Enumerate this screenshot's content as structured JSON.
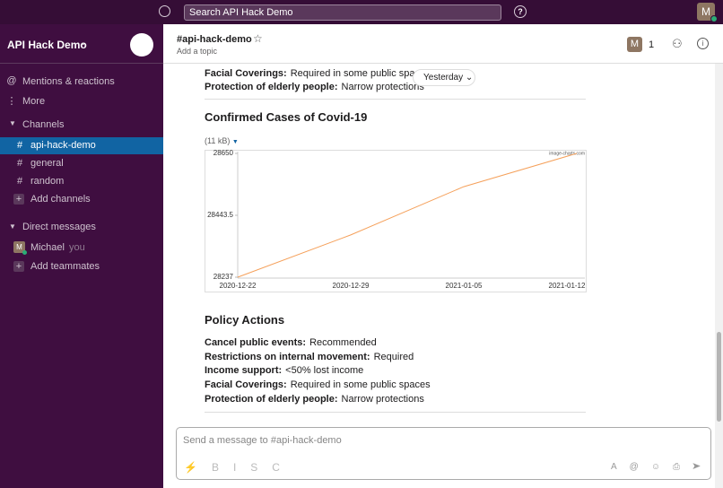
{
  "topbar": {
    "search": "Search API Hack Demo",
    "avatar": "M"
  },
  "sidebar": {
    "workspace": "API Hack Demo",
    "mentions": "Mentions & reactions",
    "more": "More",
    "channels_header": "Channels",
    "channels": [
      "api-hack-demo",
      "general",
      "random"
    ],
    "add_channels": "Add channels",
    "dm_header": "Direct messages",
    "dm_avatar": "M",
    "dm_user": "Michael",
    "dm_you": "you",
    "add_teammates": "Add teammates"
  },
  "header": {
    "channel": "#api-hack-demo",
    "topic": "Add a topic",
    "member_avatar": "M",
    "member_count": 1
  },
  "message": {
    "top_policies": [
      {
        "label": "Facial Coverings:",
        "value": "Required in some public spaces"
      },
      {
        "label": "Protection of elderly people:",
        "value": "Narrow protections"
      }
    ],
    "date_pill": "Yesterday",
    "chart_title": "Confirmed Cases of Covid-19",
    "file_size": "(11 kB)",
    "chart": {
      "type": "line",
      "x": [
        "2020-12-22",
        "2020-12-29",
        "2021-01-05",
        "2021-01-12"
      ],
      "values": [
        28237,
        28378,
        28539,
        28650
      ],
      "ylim": [
        28237,
        28650
      ],
      "yticks": [
        28237,
        28443.5,
        28650
      ],
      "color": "#f5a05a",
      "watermark": "image-charts.com"
    },
    "policy_title": "Policy Actions",
    "policies": [
      {
        "label": "Cancel public events:",
        "value": "Recommended"
      },
      {
        "label": "Restrictions on internal movement:",
        "value": "Required"
      },
      {
        "label": "Income support:",
        "value": "<50% lost income"
      },
      {
        "label": "Facial Coverings:",
        "value": "Required in some public spaces"
      },
      {
        "label": "Protection of elderly people:",
        "value": "Narrow protections"
      }
    ]
  },
  "composer": {
    "placeholder": "Send a message to #api-hack-demo"
  }
}
